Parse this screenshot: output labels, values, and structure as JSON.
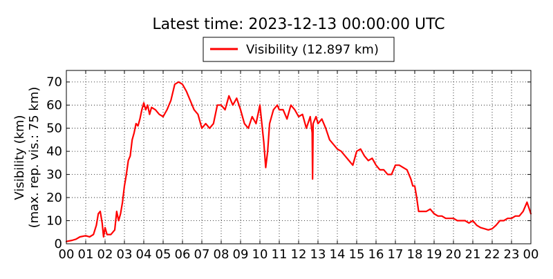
{
  "chart_data": {
    "type": "line",
    "title": "Latest time: 2023-12-13 00:00:00 UTC",
    "ylabel_line1": "Visibility (km)",
    "ylabel_line2": "(max. rep. vis.: 75 km)",
    "xlabel": "",
    "ylim": [
      0,
      75
    ],
    "xlim": [
      0,
      24
    ],
    "y_ticks": [
      0,
      10,
      20,
      30,
      40,
      50,
      60,
      70
    ],
    "x_ticks": [
      0,
      1,
      2,
      3,
      4,
      5,
      6,
      7,
      8,
      9,
      10,
      11,
      12,
      13,
      14,
      15,
      16,
      17,
      18,
      19,
      20,
      21,
      22,
      23,
      24
    ],
    "x_tick_labels": [
      "00",
      "01",
      "02",
      "03",
      "04",
      "05",
      "06",
      "07",
      "08",
      "09",
      "10",
      "11",
      "12",
      "13",
      "14",
      "15",
      "16",
      "17",
      "18",
      "19",
      "20",
      "21",
      "22",
      "23",
      "00"
    ],
    "grid": true,
    "legend_position": "top-center",
    "series": [
      {
        "name": "Visibility (12.897 km)",
        "color": "#ff0000",
        "x": [
          0.0,
          0.3,
          0.5,
          0.7,
          1.0,
          1.2,
          1.4,
          1.55,
          1.65,
          1.75,
          1.85,
          1.92,
          2.0,
          2.1,
          2.3,
          2.5,
          2.6,
          2.7,
          2.8,
          2.9,
          3.0,
          3.1,
          3.2,
          3.3,
          3.4,
          3.5,
          3.6,
          3.7,
          3.8,
          3.9,
          4.0,
          4.1,
          4.2,
          4.3,
          4.4,
          4.6,
          4.8,
          5.0,
          5.2,
          5.4,
          5.6,
          5.8,
          6.0,
          6.2,
          6.4,
          6.6,
          6.8,
          7.0,
          7.2,
          7.4,
          7.6,
          7.8,
          8.0,
          8.2,
          8.4,
          8.6,
          8.8,
          9.0,
          9.2,
          9.4,
          9.6,
          9.8,
          10.0,
          10.2,
          10.3,
          10.4,
          10.5,
          10.7,
          10.9,
          11.0,
          11.2,
          11.4,
          11.6,
          11.8,
          12.0,
          12.2,
          12.4,
          12.6,
          12.7,
          12.72,
          12.75,
          12.9,
          13.0,
          13.2,
          13.4,
          13.6,
          13.8,
          14.0,
          14.2,
          14.4,
          14.6,
          14.8,
          15.0,
          15.2,
          15.4,
          15.6,
          15.8,
          16.0,
          16.2,
          16.4,
          16.6,
          16.8,
          17.0,
          17.2,
          17.4,
          17.6,
          17.8,
          17.9,
          18.0,
          18.1,
          18.2,
          18.4,
          18.6,
          18.8,
          19.0,
          19.2,
          19.4,
          19.6,
          19.8,
          20.0,
          20.2,
          20.4,
          20.6,
          20.8,
          21.0,
          21.2,
          21.4,
          21.6,
          21.8,
          22.0,
          22.2,
          22.4,
          22.6,
          22.8,
          23.0,
          23.2,
          23.4,
          23.6,
          23.8,
          24.0
        ],
        "values": [
          1.0,
          1.5,
          2.0,
          3.0,
          3.5,
          3.0,
          4.0,
          8.0,
          13.0,
          14.0,
          9.0,
          3.0,
          7.0,
          4.0,
          4.0,
          6.0,
          14.0,
          10.0,
          13.0,
          18.0,
          25.0,
          30.0,
          36.0,
          38.0,
          45.0,
          48.0,
          52.0,
          51.0,
          54.0,
          58.0,
          61.0,
          58.0,
          60.0,
          56.0,
          59.0,
          58.0,
          56.0,
          55.0,
          58.0,
          62.0,
          69.0,
          70.0,
          69.0,
          66.0,
          62.0,
          58.0,
          56.0,
          50.0,
          52.0,
          50.0,
          52.0,
          60.0,
          60.0,
          58.0,
          64.0,
          60.0,
          63.0,
          58.0,
          52.0,
          50.0,
          55.0,
          52.0,
          60.0,
          44.0,
          33.0,
          40.0,
          52.0,
          58.0,
          60.0,
          58.0,
          58.0,
          54.0,
          60.0,
          58.0,
          55.0,
          56.0,
          50.0,
          55.0,
          48.0,
          28.0,
          52.0,
          55.0,
          52.0,
          54.0,
          50.0,
          45.0,
          43.0,
          41.0,
          40.0,
          38.0,
          36.0,
          34.0,
          40.0,
          41.0,
          38.0,
          36.0,
          37.0,
          34.0,
          32.0,
          32.0,
          30.0,
          30.0,
          34.0,
          34.0,
          33.0,
          32.0,
          28.0,
          25.0,
          25.0,
          20.0,
          14.0,
          14.0,
          14.0,
          15.0,
          13.0,
          12.0,
          12.0,
          11.0,
          11.0,
          11.0,
          10.0,
          10.0,
          10.0,
          9.0,
          10.0,
          8.0,
          7.0,
          6.5,
          6.0,
          6.5,
          8.0,
          10.0,
          10.0,
          11.0,
          11.0,
          12.0,
          12.0,
          14.0,
          18.0,
          13.0
        ]
      }
    ]
  }
}
